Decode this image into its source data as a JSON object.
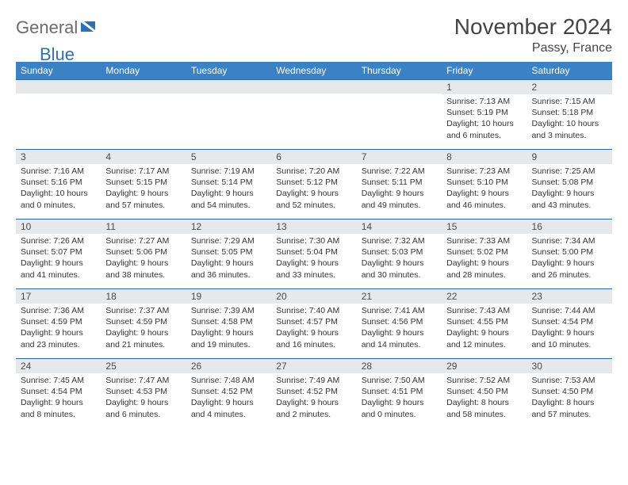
{
  "logo": {
    "part1": "General",
    "part2": "Blue"
  },
  "title": "November 2024",
  "location": "Passy, France",
  "colors": {
    "header_bg": "#3b82c4",
    "header_text": "#ffffff",
    "daynum_bg": "#e7e8ea",
    "cell_border": "#2b6aa8",
    "logo_gray": "#6b6b6b",
    "logo_blue": "#2b70b8"
  },
  "weekdays": [
    "Sunday",
    "Monday",
    "Tuesday",
    "Wednesday",
    "Thursday",
    "Friday",
    "Saturday"
  ],
  "weeks": [
    [
      {
        "n": "",
        "lines": []
      },
      {
        "n": "",
        "lines": []
      },
      {
        "n": "",
        "lines": []
      },
      {
        "n": "",
        "lines": []
      },
      {
        "n": "",
        "lines": []
      },
      {
        "n": "1",
        "lines": [
          "Sunrise: 7:13 AM",
          "Sunset: 5:19 PM",
          "Daylight: 10 hours and 6 minutes."
        ]
      },
      {
        "n": "2",
        "lines": [
          "Sunrise: 7:15 AM",
          "Sunset: 5:18 PM",
          "Daylight: 10 hours and 3 minutes."
        ]
      }
    ],
    [
      {
        "n": "3",
        "lines": [
          "Sunrise: 7:16 AM",
          "Sunset: 5:16 PM",
          "Daylight: 10 hours and 0 minutes."
        ]
      },
      {
        "n": "4",
        "lines": [
          "Sunrise: 7:17 AM",
          "Sunset: 5:15 PM",
          "Daylight: 9 hours and 57 minutes."
        ]
      },
      {
        "n": "5",
        "lines": [
          "Sunrise: 7:19 AM",
          "Sunset: 5:14 PM",
          "Daylight: 9 hours and 54 minutes."
        ]
      },
      {
        "n": "6",
        "lines": [
          "Sunrise: 7:20 AM",
          "Sunset: 5:12 PM",
          "Daylight: 9 hours and 52 minutes."
        ]
      },
      {
        "n": "7",
        "lines": [
          "Sunrise: 7:22 AM",
          "Sunset: 5:11 PM",
          "Daylight: 9 hours and 49 minutes."
        ]
      },
      {
        "n": "8",
        "lines": [
          "Sunrise: 7:23 AM",
          "Sunset: 5:10 PM",
          "Daylight: 9 hours and 46 minutes."
        ]
      },
      {
        "n": "9",
        "lines": [
          "Sunrise: 7:25 AM",
          "Sunset: 5:08 PM",
          "Daylight: 9 hours and 43 minutes."
        ]
      }
    ],
    [
      {
        "n": "10",
        "lines": [
          "Sunrise: 7:26 AM",
          "Sunset: 5:07 PM",
          "Daylight: 9 hours and 41 minutes."
        ]
      },
      {
        "n": "11",
        "lines": [
          "Sunrise: 7:27 AM",
          "Sunset: 5:06 PM",
          "Daylight: 9 hours and 38 minutes."
        ]
      },
      {
        "n": "12",
        "lines": [
          "Sunrise: 7:29 AM",
          "Sunset: 5:05 PM",
          "Daylight: 9 hours and 36 minutes."
        ]
      },
      {
        "n": "13",
        "lines": [
          "Sunrise: 7:30 AM",
          "Sunset: 5:04 PM",
          "Daylight: 9 hours and 33 minutes."
        ]
      },
      {
        "n": "14",
        "lines": [
          "Sunrise: 7:32 AM",
          "Sunset: 5:03 PM",
          "Daylight: 9 hours and 30 minutes."
        ]
      },
      {
        "n": "15",
        "lines": [
          "Sunrise: 7:33 AM",
          "Sunset: 5:02 PM",
          "Daylight: 9 hours and 28 minutes."
        ]
      },
      {
        "n": "16",
        "lines": [
          "Sunrise: 7:34 AM",
          "Sunset: 5:00 PM",
          "Daylight: 9 hours and 26 minutes."
        ]
      }
    ],
    [
      {
        "n": "17",
        "lines": [
          "Sunrise: 7:36 AM",
          "Sunset: 4:59 PM",
          "Daylight: 9 hours and 23 minutes."
        ]
      },
      {
        "n": "18",
        "lines": [
          "Sunrise: 7:37 AM",
          "Sunset: 4:59 PM",
          "Daylight: 9 hours and 21 minutes."
        ]
      },
      {
        "n": "19",
        "lines": [
          "Sunrise: 7:39 AM",
          "Sunset: 4:58 PM",
          "Daylight: 9 hours and 19 minutes."
        ]
      },
      {
        "n": "20",
        "lines": [
          "Sunrise: 7:40 AM",
          "Sunset: 4:57 PM",
          "Daylight: 9 hours and 16 minutes."
        ]
      },
      {
        "n": "21",
        "lines": [
          "Sunrise: 7:41 AM",
          "Sunset: 4:56 PM",
          "Daylight: 9 hours and 14 minutes."
        ]
      },
      {
        "n": "22",
        "lines": [
          "Sunrise: 7:43 AM",
          "Sunset: 4:55 PM",
          "Daylight: 9 hours and 12 minutes."
        ]
      },
      {
        "n": "23",
        "lines": [
          "Sunrise: 7:44 AM",
          "Sunset: 4:54 PM",
          "Daylight: 9 hours and 10 minutes."
        ]
      }
    ],
    [
      {
        "n": "24",
        "lines": [
          "Sunrise: 7:45 AM",
          "Sunset: 4:54 PM",
          "Daylight: 9 hours and 8 minutes."
        ]
      },
      {
        "n": "25",
        "lines": [
          "Sunrise: 7:47 AM",
          "Sunset: 4:53 PM",
          "Daylight: 9 hours and 6 minutes."
        ]
      },
      {
        "n": "26",
        "lines": [
          "Sunrise: 7:48 AM",
          "Sunset: 4:52 PM",
          "Daylight: 9 hours and 4 minutes."
        ]
      },
      {
        "n": "27",
        "lines": [
          "Sunrise: 7:49 AM",
          "Sunset: 4:52 PM",
          "Daylight: 9 hours and 2 minutes."
        ]
      },
      {
        "n": "28",
        "lines": [
          "Sunrise: 7:50 AM",
          "Sunset: 4:51 PM",
          "Daylight: 9 hours and 0 minutes."
        ]
      },
      {
        "n": "29",
        "lines": [
          "Sunrise: 7:52 AM",
          "Sunset: 4:50 PM",
          "Daylight: 8 hours and 58 minutes."
        ]
      },
      {
        "n": "30",
        "lines": [
          "Sunrise: 7:53 AM",
          "Sunset: 4:50 PM",
          "Daylight: 8 hours and 57 minutes."
        ]
      }
    ]
  ]
}
